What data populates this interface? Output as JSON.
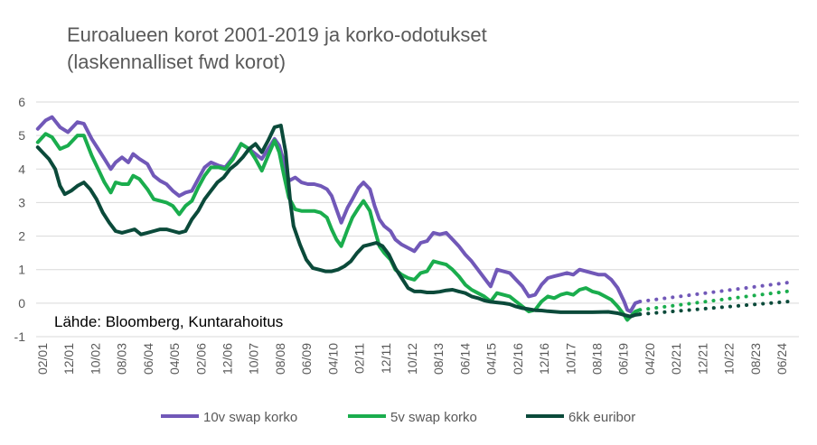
{
  "chart_data": {
    "type": "line",
    "title": "Euroalueen korot 2001-2019 ja korko-odotukset\n(laskennalliset fwd korot)",
    "source_note": "Lähde: Bloomberg, Kuntarahoitus",
    "ylim": [
      -1,
      6
    ],
    "yticks": [
      "6",
      "5",
      "4",
      "3",
      "2",
      "1",
      "0",
      "-1"
    ],
    "xlim": [
      2001.0,
      2025.0
    ],
    "xtick_labels": [
      "02/01",
      "12/01",
      "10/02",
      "08/03",
      "06/04",
      "04/05",
      "02/06",
      "12/06",
      "10/07",
      "08/08",
      "06/09",
      "04/10",
      "02/11",
      "12/11",
      "10/12",
      "08/13",
      "06/14",
      "04/15",
      "02/16",
      "12/16",
      "10/17",
      "08/18",
      "06/19",
      "04/20",
      "02/21",
      "12/21",
      "10/22",
      "08/23",
      "06/24"
    ],
    "grid": true,
    "legend_position": "bottom",
    "series": [
      {
        "name": "10v swap korko",
        "color": "#7158b8",
        "points": [
          [
            2001.05,
            5.2
          ],
          [
            2001.3,
            5.45
          ],
          [
            2001.5,
            5.55
          ],
          [
            2001.75,
            5.25
          ],
          [
            2002.0,
            5.1
          ],
          [
            2002.3,
            5.4
          ],
          [
            2002.5,
            5.35
          ],
          [
            2002.75,
            4.9
          ],
          [
            2002.95,
            4.6
          ],
          [
            2003.15,
            4.3
          ],
          [
            2003.35,
            4.0
          ],
          [
            2003.5,
            4.2
          ],
          [
            2003.7,
            4.35
          ],
          [
            2003.9,
            4.2
          ],
          [
            2004.05,
            4.45
          ],
          [
            2004.25,
            4.3
          ],
          [
            2004.5,
            4.15
          ],
          [
            2004.7,
            3.8
          ],
          [
            2004.9,
            3.65
          ],
          [
            2005.1,
            3.55
          ],
          [
            2005.3,
            3.35
          ],
          [
            2005.5,
            3.2
          ],
          [
            2005.7,
            3.3
          ],
          [
            2005.9,
            3.35
          ],
          [
            2006.1,
            3.7
          ],
          [
            2006.3,
            4.05
          ],
          [
            2006.5,
            4.2
          ],
          [
            2006.75,
            4.1
          ],
          [
            2006.95,
            4.05
          ],
          [
            2007.2,
            4.35
          ],
          [
            2007.45,
            4.75
          ],
          [
            2007.7,
            4.6
          ],
          [
            2007.9,
            4.45
          ],
          [
            2008.1,
            4.3
          ],
          [
            2008.3,
            4.6
          ],
          [
            2008.5,
            4.9
          ],
          [
            2008.65,
            4.7
          ],
          [
            2008.8,
            4.2
          ],
          [
            2008.95,
            3.65
          ],
          [
            2009.15,
            3.75
          ],
          [
            2009.35,
            3.6
          ],
          [
            2009.55,
            3.55
          ],
          [
            2009.75,
            3.55
          ],
          [
            2009.95,
            3.5
          ],
          [
            2010.15,
            3.4
          ],
          [
            2010.3,
            3.2
          ],
          [
            2010.45,
            2.8
          ],
          [
            2010.6,
            2.4
          ],
          [
            2010.8,
            2.85
          ],
          [
            2010.95,
            3.1
          ],
          [
            2011.15,
            3.45
          ],
          [
            2011.3,
            3.6
          ],
          [
            2011.5,
            3.4
          ],
          [
            2011.65,
            2.9
          ],
          [
            2011.8,
            2.5
          ],
          [
            2011.95,
            2.3
          ],
          [
            2012.15,
            2.15
          ],
          [
            2012.3,
            1.9
          ],
          [
            2012.5,
            1.75
          ],
          [
            2012.7,
            1.65
          ],
          [
            2012.9,
            1.55
          ],
          [
            2013.1,
            1.8
          ],
          [
            2013.3,
            1.85
          ],
          [
            2013.5,
            2.1
          ],
          [
            2013.7,
            2.05
          ],
          [
            2013.9,
            2.1
          ],
          [
            2014.1,
            1.9
          ],
          [
            2014.3,
            1.7
          ],
          [
            2014.5,
            1.45
          ],
          [
            2014.7,
            1.25
          ],
          [
            2014.9,
            1.0
          ],
          [
            2015.1,
            0.75
          ],
          [
            2015.3,
            0.5
          ],
          [
            2015.5,
            1.0
          ],
          [
            2015.7,
            0.95
          ],
          [
            2015.9,
            0.9
          ],
          [
            2016.1,
            0.7
          ],
          [
            2016.3,
            0.5
          ],
          [
            2016.5,
            0.2
          ],
          [
            2016.7,
            0.25
          ],
          [
            2016.9,
            0.55
          ],
          [
            2017.1,
            0.75
          ],
          [
            2017.3,
            0.8
          ],
          [
            2017.5,
            0.85
          ],
          [
            2017.7,
            0.9
          ],
          [
            2017.9,
            0.85
          ],
          [
            2018.1,
            1.0
          ],
          [
            2018.3,
            0.95
          ],
          [
            2018.5,
            0.9
          ],
          [
            2018.7,
            0.85
          ],
          [
            2018.9,
            0.85
          ],
          [
            2019.1,
            0.7
          ],
          [
            2019.3,
            0.45
          ],
          [
            2019.5,
            0.05
          ],
          [
            2019.6,
            -0.2
          ],
          [
            2019.7,
            -0.25
          ],
          [
            2019.85,
            0.0
          ],
          [
            2020.0,
            0.05
          ]
        ]
      },
      {
        "name": "5v swap korko",
        "color": "#1aad4d",
        "points": [
          [
            2001.05,
            4.8
          ],
          [
            2001.3,
            5.05
          ],
          [
            2001.5,
            4.95
          ],
          [
            2001.75,
            4.6
          ],
          [
            2002.0,
            4.7
          ],
          [
            2002.3,
            5.0
          ],
          [
            2002.5,
            5.0
          ],
          [
            2002.75,
            4.4
          ],
          [
            2002.95,
            4.0
          ],
          [
            2003.15,
            3.6
          ],
          [
            2003.35,
            3.3
          ],
          [
            2003.5,
            3.6
          ],
          [
            2003.7,
            3.55
          ],
          [
            2003.9,
            3.55
          ],
          [
            2004.05,
            3.8
          ],
          [
            2004.25,
            3.7
          ],
          [
            2004.5,
            3.4
          ],
          [
            2004.7,
            3.1
          ],
          [
            2004.9,
            3.05
          ],
          [
            2005.1,
            3.0
          ],
          [
            2005.3,
            2.9
          ],
          [
            2005.5,
            2.65
          ],
          [
            2005.7,
            2.9
          ],
          [
            2005.9,
            3.05
          ],
          [
            2006.1,
            3.45
          ],
          [
            2006.3,
            3.8
          ],
          [
            2006.5,
            4.05
          ],
          [
            2006.75,
            4.05
          ],
          [
            2006.95,
            4.0
          ],
          [
            2007.2,
            4.3
          ],
          [
            2007.45,
            4.75
          ],
          [
            2007.7,
            4.6
          ],
          [
            2007.9,
            4.3
          ],
          [
            2008.1,
            3.95
          ],
          [
            2008.3,
            4.4
          ],
          [
            2008.5,
            4.85
          ],
          [
            2008.65,
            4.5
          ],
          [
            2008.8,
            3.8
          ],
          [
            2008.95,
            3.15
          ],
          [
            2009.15,
            2.8
          ],
          [
            2009.35,
            2.75
          ],
          [
            2009.55,
            2.75
          ],
          [
            2009.75,
            2.75
          ],
          [
            2009.95,
            2.7
          ],
          [
            2010.15,
            2.55
          ],
          [
            2010.3,
            2.2
          ],
          [
            2010.45,
            1.9
          ],
          [
            2010.6,
            1.7
          ],
          [
            2010.8,
            2.2
          ],
          [
            2010.95,
            2.55
          ],
          [
            2011.15,
            2.85
          ],
          [
            2011.3,
            3.05
          ],
          [
            2011.5,
            2.75
          ],
          [
            2011.65,
            2.2
          ],
          [
            2011.8,
            1.7
          ],
          [
            2011.95,
            1.5
          ],
          [
            2012.15,
            1.3
          ],
          [
            2012.3,
            1.0
          ],
          [
            2012.5,
            0.85
          ],
          [
            2012.7,
            0.75
          ],
          [
            2012.9,
            0.7
          ],
          [
            2013.1,
            0.9
          ],
          [
            2013.3,
            0.95
          ],
          [
            2013.5,
            1.25
          ],
          [
            2013.7,
            1.2
          ],
          [
            2013.9,
            1.15
          ],
          [
            2014.1,
            1.0
          ],
          [
            2014.3,
            0.8
          ],
          [
            2014.5,
            0.55
          ],
          [
            2014.7,
            0.4
          ],
          [
            2014.9,
            0.3
          ],
          [
            2015.1,
            0.2
          ],
          [
            2015.3,
            0.05
          ],
          [
            2015.5,
            0.3
          ],
          [
            2015.7,
            0.25
          ],
          [
            2015.9,
            0.2
          ],
          [
            2016.1,
            0.05
          ],
          [
            2016.3,
            -0.1
          ],
          [
            2016.5,
            -0.25
          ],
          [
            2016.7,
            -0.2
          ],
          [
            2016.9,
            0.05
          ],
          [
            2017.1,
            0.2
          ],
          [
            2017.3,
            0.15
          ],
          [
            2017.5,
            0.25
          ],
          [
            2017.7,
            0.3
          ],
          [
            2017.9,
            0.25
          ],
          [
            2018.1,
            0.4
          ],
          [
            2018.3,
            0.45
          ],
          [
            2018.5,
            0.35
          ],
          [
            2018.7,
            0.3
          ],
          [
            2018.9,
            0.2
          ],
          [
            2019.1,
            0.1
          ],
          [
            2019.3,
            -0.1
          ],
          [
            2019.5,
            -0.35
          ],
          [
            2019.6,
            -0.5
          ],
          [
            2019.7,
            -0.4
          ],
          [
            2019.85,
            -0.25
          ],
          [
            2020.0,
            -0.2
          ]
        ]
      },
      {
        "name": "6kk euribor",
        "color": "#0b4a3a",
        "points": [
          [
            2001.05,
            4.65
          ],
          [
            2001.2,
            4.5
          ],
          [
            2001.4,
            4.3
          ],
          [
            2001.6,
            4.0
          ],
          [
            2001.75,
            3.5
          ],
          [
            2001.9,
            3.25
          ],
          [
            2002.1,
            3.35
          ],
          [
            2002.3,
            3.5
          ],
          [
            2002.5,
            3.6
          ],
          [
            2002.7,
            3.4
          ],
          [
            2002.9,
            3.1
          ],
          [
            2003.1,
            2.7
          ],
          [
            2003.3,
            2.4
          ],
          [
            2003.5,
            2.15
          ],
          [
            2003.7,
            2.1
          ],
          [
            2003.9,
            2.15
          ],
          [
            2004.1,
            2.2
          ],
          [
            2004.3,
            2.05
          ],
          [
            2004.5,
            2.1
          ],
          [
            2004.7,
            2.15
          ],
          [
            2004.9,
            2.2
          ],
          [
            2005.1,
            2.2
          ],
          [
            2005.3,
            2.15
          ],
          [
            2005.5,
            2.1
          ],
          [
            2005.7,
            2.15
          ],
          [
            2005.9,
            2.5
          ],
          [
            2006.1,
            2.75
          ],
          [
            2006.3,
            3.1
          ],
          [
            2006.5,
            3.35
          ],
          [
            2006.7,
            3.6
          ],
          [
            2006.9,
            3.75
          ],
          [
            2007.1,
            4.0
          ],
          [
            2007.3,
            4.15
          ],
          [
            2007.5,
            4.35
          ],
          [
            2007.7,
            4.6
          ],
          [
            2007.9,
            4.75
          ],
          [
            2008.1,
            4.5
          ],
          [
            2008.3,
            4.85
          ],
          [
            2008.5,
            5.25
          ],
          [
            2008.7,
            5.3
          ],
          [
            2008.85,
            4.5
          ],
          [
            2009.0,
            3.0
          ],
          [
            2009.1,
            2.3
          ],
          [
            2009.3,
            1.75
          ],
          [
            2009.5,
            1.3
          ],
          [
            2009.7,
            1.05
          ],
          [
            2009.9,
            1.0
          ],
          [
            2010.1,
            0.95
          ],
          [
            2010.3,
            0.95
          ],
          [
            2010.5,
            1.0
          ],
          [
            2010.7,
            1.1
          ],
          [
            2010.9,
            1.25
          ],
          [
            2011.1,
            1.5
          ],
          [
            2011.3,
            1.7
          ],
          [
            2011.5,
            1.75
          ],
          [
            2011.7,
            1.8
          ],
          [
            2011.9,
            1.7
          ],
          [
            2012.1,
            1.45
          ],
          [
            2012.3,
            1.05
          ],
          [
            2012.5,
            0.75
          ],
          [
            2012.7,
            0.45
          ],
          [
            2012.9,
            0.35
          ],
          [
            2013.1,
            0.35
          ],
          [
            2013.3,
            0.32
          ],
          [
            2013.5,
            0.32
          ],
          [
            2013.7,
            0.34
          ],
          [
            2013.9,
            0.38
          ],
          [
            2014.1,
            0.4
          ],
          [
            2014.3,
            0.35
          ],
          [
            2014.5,
            0.3
          ],
          [
            2014.7,
            0.2
          ],
          [
            2014.9,
            0.15
          ],
          [
            2015.1,
            0.08
          ],
          [
            2015.3,
            0.04
          ],
          [
            2015.5,
            0.02
          ],
          [
            2015.7,
            0.0
          ],
          [
            2015.9,
            -0.03
          ],
          [
            2016.1,
            -0.1
          ],
          [
            2016.3,
            -0.15
          ],
          [
            2016.5,
            -0.18
          ],
          [
            2016.7,
            -0.21
          ],
          [
            2016.9,
            -0.22
          ],
          [
            2017.1,
            -0.24
          ],
          [
            2017.5,
            -0.27
          ],
          [
            2018.0,
            -0.27
          ],
          [
            2018.5,
            -0.27
          ],
          [
            2019.0,
            -0.26
          ],
          [
            2019.3,
            -0.3
          ],
          [
            2019.5,
            -0.35
          ],
          [
            2019.7,
            -0.4
          ],
          [
            2019.85,
            -0.35
          ],
          [
            2020.0,
            -0.33
          ]
        ]
      }
    ],
    "forecast_series": [
      {
        "name": "10v swap korko",
        "color": "#7158b8",
        "points": [
          [
            2020.0,
            0.05
          ],
          [
            2024.7,
            0.62
          ]
        ]
      },
      {
        "name": "5v swap korko",
        "color": "#1aad4d",
        "points": [
          [
            2020.0,
            -0.2
          ],
          [
            2024.7,
            0.36
          ]
        ]
      },
      {
        "name": "6kk euribor",
        "color": "#0b4a3a",
        "points": [
          [
            2020.0,
            -0.33
          ],
          [
            2024.7,
            0.05
          ]
        ]
      }
    ]
  }
}
